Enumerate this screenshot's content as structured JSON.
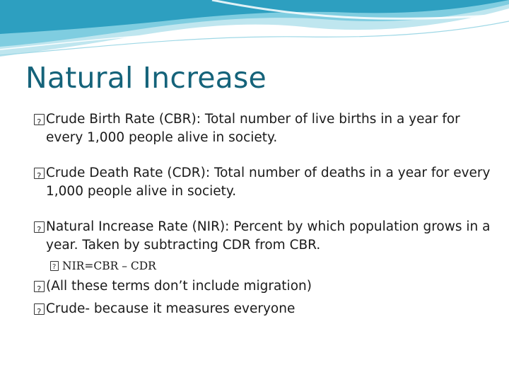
{
  "slide": {
    "title": "Natural Increase",
    "bullets": [
      "Crude Birth Rate (CBR): Total number of live births in a year for every 1,000 people alive in society.",
      "Crude Death Rate (CDR): Total number of deaths in a year for every 1,000 people alive in society.",
      "Natural Increase Rate (NIR): Percent by which population grows in a year. Taken by subtracting CDR from CBR."
    ],
    "sub_bullet": "NIR=CBR – CDR",
    "extra_bullets": [
      "(All these terms don’t include migration)",
      "Crude- because it measures everyone"
    ],
    "colors": {
      "title": "#15637a",
      "wave_light": "#bfe6ef",
      "wave_mid": "#7fcde0",
      "wave_dark": "#2d9fc0"
    }
  }
}
